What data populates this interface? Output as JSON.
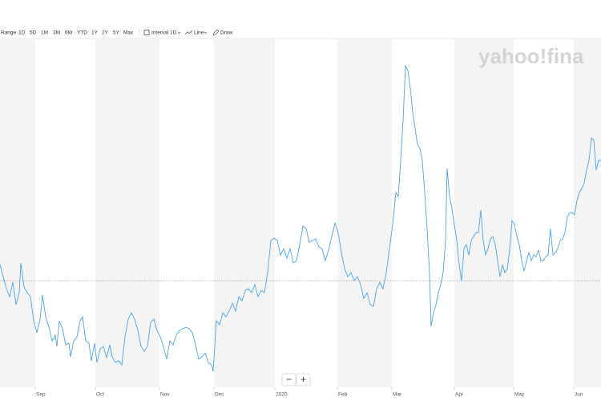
{
  "toolbar": {
    "range_label": "Range",
    "ranges": [
      "1D",
      "5D",
      "1M",
      "3M",
      "6M",
      "YTD",
      "1Y",
      "2Y",
      "5Y",
      "Max"
    ],
    "interval_label": "Interval",
    "interval": "1D",
    "chart_style": "Line",
    "draw": "Draw"
  },
  "watermark": "yahoo!fina",
  "zoom": {
    "out": "−",
    "in": "+"
  },
  "chart_data": {
    "type": "line",
    "color": "#4aa3e8",
    "stripe_color": "#f4f4f4",
    "xlim": [
      0,
      750
    ],
    "ylim": [
      0,
      435
    ],
    "previous_close": 133,
    "xticks": [
      {
        "value": 44,
        "label": "Sep"
      },
      {
        "value": 119,
        "label": "Oct"
      },
      {
        "value": 199,
        "label": "Nov"
      },
      {
        "value": 267,
        "label": "Dec"
      },
      {
        "value": 343,
        "label": "2020"
      },
      {
        "value": 421,
        "label": "Feb"
      },
      {
        "value": 489,
        "label": "Mar"
      },
      {
        "value": 567,
        "label": "Apr"
      },
      {
        "value": 641,
        "label": "May"
      },
      {
        "value": 716,
        "label": "Jun"
      }
    ],
    "x": [
      0,
      4,
      8,
      12,
      16,
      20,
      24,
      26,
      30,
      34,
      38,
      42,
      46,
      50,
      53,
      57,
      61,
      65,
      69,
      71,
      74,
      78,
      82,
      86,
      88,
      92,
      96,
      100,
      103,
      107,
      111,
      114,
      118,
      121,
      125,
      129,
      133,
      137,
      140,
      144,
      148,
      152,
      156,
      160,
      164,
      168,
      172,
      176,
      180,
      184,
      188,
      192,
      196,
      200,
      204,
      208,
      212,
      216,
      220,
      224,
      228,
      232,
      236,
      240,
      244,
      248,
      252,
      256,
      260,
      264,
      266,
      270,
      274,
      278,
      282,
      286,
      290,
      294,
      298,
      302,
      306,
      310,
      314,
      318,
      322,
      326,
      330,
      334,
      338,
      342,
      346,
      350,
      354,
      358,
      362,
      366,
      370,
      374,
      378,
      382,
      386,
      390,
      394,
      398,
      402,
      406,
      410,
      414,
      418,
      422,
      426,
      430,
      434,
      438,
      442,
      446,
      450,
      454,
      458,
      462,
      466,
      470,
      474,
      478,
      482,
      486,
      490,
      494,
      497,
      500,
      503,
      506,
      509,
      512,
      515,
      518,
      521,
      524,
      527,
      530,
      533,
      536,
      538,
      541,
      544,
      547,
      550,
      553,
      556,
      558,
      561,
      564,
      567,
      570,
      573,
      576,
      579,
      582,
      585,
      588,
      591,
      594,
      597,
      600,
      603,
      606,
      609,
      612,
      615,
      618,
      621,
      624,
      627,
      630,
      633,
      636,
      639,
      642,
      645,
      648,
      651,
      654,
      657,
      660,
      663,
      666,
      669,
      672,
      675,
      678,
      681,
      684,
      687,
      690,
      693,
      696,
      699,
      702,
      705,
      708,
      711,
      714,
      717,
      720,
      723,
      726,
      729,
      732,
      735,
      738,
      741,
      744,
      747,
      750
    ],
    "values": [
      153,
      138,
      123,
      113,
      131,
      103,
      118,
      155,
      125,
      118,
      113,
      83,
      68,
      85,
      115,
      88,
      75,
      58,
      65,
      51,
      83,
      73,
      53,
      55,
      38,
      58,
      63,
      83,
      88,
      58,
      55,
      33,
      55,
      31,
      48,
      51,
      37,
      53,
      38,
      31,
      33,
      28,
      63,
      85,
      93,
      85,
      71,
      51,
      45,
      51,
      81,
      85,
      71,
      63,
      51,
      35,
      58,
      53,
      65,
      71,
      73,
      75,
      73,
      68,
      53,
      35,
      38,
      43,
      31,
      28,
      20,
      83,
      78,
      93,
      88,
      95,
      105,
      95,
      113,
      108,
      121,
      123,
      118,
      128,
      113,
      121,
      118,
      143,
      183,
      186,
      183,
      165,
      173,
      161,
      173,
      155,
      158,
      178,
      201,
      198,
      181,
      183,
      185,
      175,
      173,
      158,
      171,
      188,
      205,
      193,
      168,
      148,
      138,
      143,
      133,
      138,
      128,
      111,
      118,
      103,
      101,
      123,
      131,
      123,
      143,
      173,
      203,
      243,
      238,
      283,
      333,
      401,
      395,
      373,
      343,
      323,
      303,
      298,
      283,
      243,
      198,
      143,
      76,
      93,
      103,
      118,
      128,
      143,
      183,
      273,
      238,
      223,
      203,
      183,
      153,
      133,
      173,
      178,
      165,
      183,
      188,
      193,
      193,
      221,
      183,
      165,
      173,
      185,
      188,
      178,
      158,
      138,
      153,
      143,
      148,
      171,
      208,
      203,
      188,
      178,
      158,
      145,
      158,
      168,
      158,
      165,
      163,
      171,
      158,
      158,
      163,
      165,
      198,
      165,
      168,
      173,
      183,
      185,
      193,
      213,
      218,
      218,
      215,
      233,
      243,
      248,
      255,
      271,
      283,
      311,
      308,
      271,
      283,
      283
    ]
  }
}
